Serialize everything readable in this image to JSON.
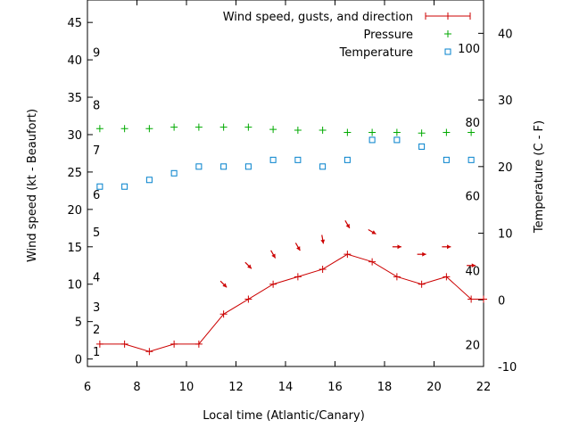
{
  "chart_data": {
    "type": "line",
    "xlabel": "Local time (Atlantic/Canary)",
    "ylabel_left": "Wind speed (kt - Beaufort)",
    "ylabel_right": "Temperature (C - F)",
    "xlim": [
      6,
      22
    ],
    "ylim_left": [
      -1,
      48
    ],
    "ylim_right": [
      -10,
      45
    ],
    "x_ticks": [
      6,
      8,
      10,
      12,
      14,
      16,
      18,
      20,
      22
    ],
    "y_ticks_left": [
      0,
      5,
      10,
      15,
      20,
      25,
      30,
      35,
      40,
      45
    ],
    "y_ticks_right": [
      -10,
      0,
      10,
      20,
      30,
      40
    ],
    "beaufort_labels": [
      {
        "label": "1",
        "value": 1
      },
      {
        "label": "2",
        "value": 4
      },
      {
        "label": "3",
        "value": 7
      },
      {
        "label": "4",
        "value": 11
      },
      {
        "label": "5",
        "value": 17
      },
      {
        "label": "6",
        "value": 22
      },
      {
        "label": "7",
        "value": 28
      },
      {
        "label": "8",
        "value": 34
      },
      {
        "label": "9",
        "value": 41
      }
    ],
    "fahrenheit_labels": [
      {
        "label": "20",
        "celsius": -6.7
      },
      {
        "label": "40",
        "celsius": 4.4
      },
      {
        "label": "60",
        "celsius": 15.6
      },
      {
        "label": "80",
        "celsius": 26.7
      },
      {
        "label": "100",
        "celsius": 37.8
      }
    ],
    "legend_position": "top-right",
    "series": [
      {
        "name": "Wind speed, gusts, and direction",
        "color": "#cc0000",
        "axis": "left",
        "style": "line-points",
        "x": [
          6.5,
          7.5,
          8.5,
          9.5,
          10.5,
          11.5,
          12.5,
          13.5,
          14.5,
          15.5,
          16.5,
          17.5,
          18.5,
          19.5,
          20.5,
          21.5,
          22
        ],
        "y": [
          2,
          2,
          1,
          2,
          2,
          6,
          8,
          10,
          11,
          12,
          14,
          13,
          11,
          10,
          11,
          8,
          8
        ]
      },
      {
        "name": "Pressure",
        "color": "#00aa00",
        "axis": "left",
        "style": "points",
        "x": [
          6.5,
          7.5,
          8.5,
          9.5,
          10.5,
          11.5,
          12.5,
          13.5,
          14.5,
          15.5,
          16.5,
          17.5,
          18.5,
          19.5,
          20.5,
          21.5
        ],
        "y": [
          30.8,
          30.8,
          30.8,
          31.0,
          31.0,
          31.0,
          31.0,
          30.7,
          30.6,
          30.6,
          30.3,
          30.3,
          30.3,
          30.2,
          30.3,
          30.3
        ]
      },
      {
        "name": "Temperature",
        "color": "#0080cc",
        "axis": "right",
        "style": "squares",
        "x": [
          6.5,
          7.5,
          8.5,
          9.5,
          10.5,
          11.5,
          12.5,
          13.5,
          14.5,
          15.5,
          16.5,
          17.5,
          18.5,
          19.5,
          20.5,
          21.5
        ],
        "y": [
          17,
          17,
          18,
          19,
          20,
          20,
          20,
          21,
          21,
          20,
          21,
          24,
          24,
          23,
          21,
          21
        ]
      }
    ],
    "wind_direction": {
      "color": "#cc0000",
      "axis": "left",
      "x": [
        11.5,
        12.5,
        13.5,
        14.5,
        15.5,
        16.5,
        17.5,
        18.5,
        19.5,
        20.5,
        21.5
      ],
      "y": [
        10,
        12.5,
        14,
        15,
        16,
        18,
        17,
        15,
        14,
        15,
        12.5
      ],
      "heading_deg": [
        315,
        315,
        330,
        330,
        350,
        330,
        300,
        270,
        270,
        270,
        270
      ]
    }
  }
}
